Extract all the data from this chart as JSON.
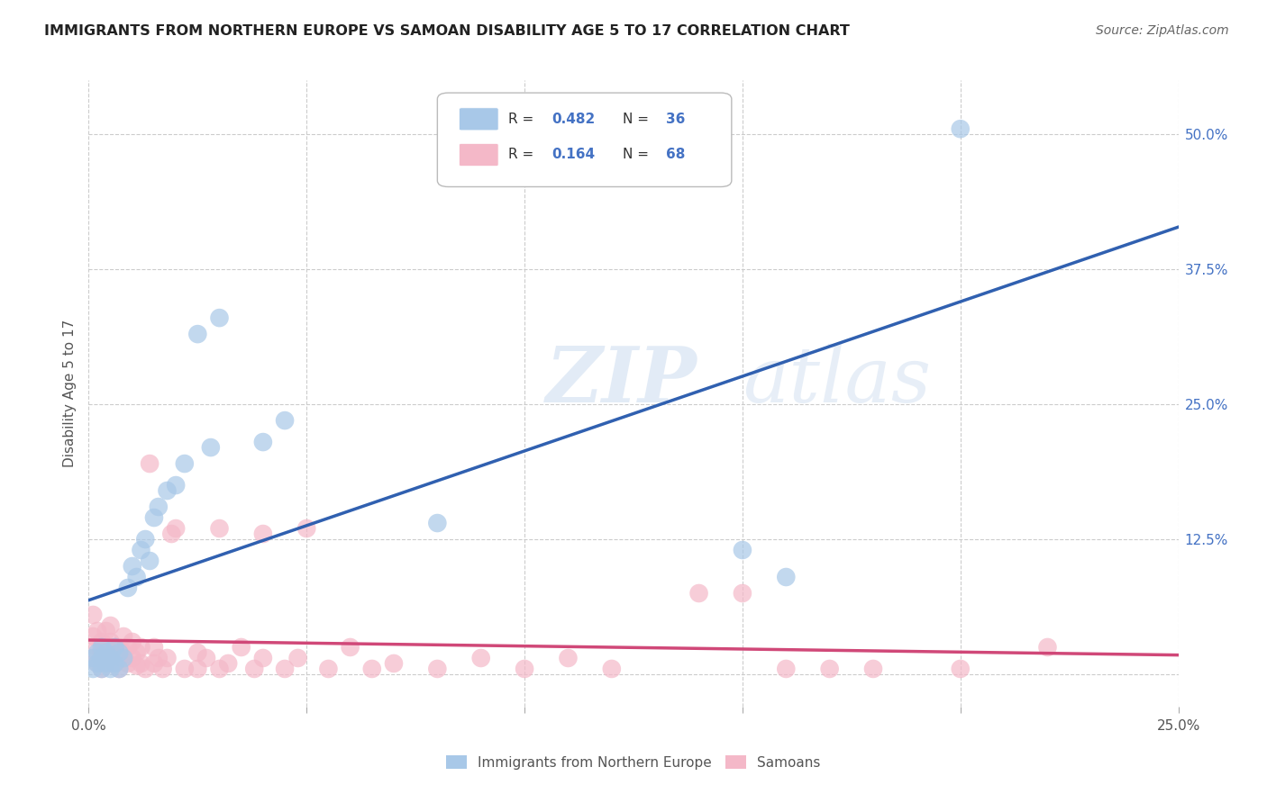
{
  "title": "IMMIGRANTS FROM NORTHERN EUROPE VS SAMOAN DISABILITY AGE 5 TO 17 CORRELATION CHART",
  "source": "Source: ZipAtlas.com",
  "ylabel_label": "Disability Age 5 to 17",
  "xlim": [
    0.0,
    0.25
  ],
  "ylim": [
    -0.03,
    0.55
  ],
  "xticks": [
    0.0,
    0.05,
    0.1,
    0.15,
    0.2,
    0.25
  ],
  "xticklabels": [
    "0.0%",
    "",
    "",
    "",
    "",
    "25.0%"
  ],
  "yticks_right": [
    0.0,
    0.125,
    0.25,
    0.375,
    0.5
  ],
  "ytick_labels_right": [
    "",
    "12.5%",
    "25.0%",
    "37.5%",
    "50.0%"
  ],
  "grid_yticks": [
    0.0,
    0.125,
    0.25,
    0.375,
    0.5
  ],
  "color_blue": "#a8c8e8",
  "color_pink": "#f4b8c8",
  "line_color_blue": "#3060b0",
  "line_color_pink": "#d04878",
  "watermark": "ZIPatlas",
  "blue_points": [
    [
      0.001,
      0.005
    ],
    [
      0.001,
      0.015
    ],
    [
      0.002,
      0.01
    ],
    [
      0.002,
      0.02
    ],
    [
      0.003,
      0.005
    ],
    [
      0.003,
      0.015
    ],
    [
      0.003,
      0.025
    ],
    [
      0.004,
      0.01
    ],
    [
      0.004,
      0.02
    ],
    [
      0.005,
      0.005
    ],
    [
      0.005,
      0.015
    ],
    [
      0.006,
      0.01
    ],
    [
      0.006,
      0.025
    ],
    [
      0.007,
      0.02
    ],
    [
      0.007,
      0.005
    ],
    [
      0.008,
      0.015
    ],
    [
      0.009,
      0.08
    ],
    [
      0.01,
      0.1
    ],
    [
      0.011,
      0.09
    ],
    [
      0.012,
      0.115
    ],
    [
      0.013,
      0.125
    ],
    [
      0.014,
      0.105
    ],
    [
      0.015,
      0.145
    ],
    [
      0.016,
      0.155
    ],
    [
      0.018,
      0.17
    ],
    [
      0.02,
      0.175
    ],
    [
      0.022,
      0.195
    ],
    [
      0.025,
      0.315
    ],
    [
      0.028,
      0.21
    ],
    [
      0.03,
      0.33
    ],
    [
      0.04,
      0.215
    ],
    [
      0.045,
      0.235
    ],
    [
      0.08,
      0.14
    ],
    [
      0.15,
      0.115
    ],
    [
      0.16,
      0.09
    ],
    [
      0.2,
      0.505
    ]
  ],
  "pink_points": [
    [
      0.001,
      0.015
    ],
    [
      0.001,
      0.035
    ],
    [
      0.001,
      0.055
    ],
    [
      0.002,
      0.01
    ],
    [
      0.002,
      0.025
    ],
    [
      0.002,
      0.04
    ],
    [
      0.003,
      0.005
    ],
    [
      0.003,
      0.02
    ],
    [
      0.003,
      0.03
    ],
    [
      0.004,
      0.01
    ],
    [
      0.004,
      0.025
    ],
    [
      0.004,
      0.04
    ],
    [
      0.005,
      0.015
    ],
    [
      0.005,
      0.03
    ],
    [
      0.005,
      0.045
    ],
    [
      0.006,
      0.01
    ],
    [
      0.006,
      0.025
    ],
    [
      0.007,
      0.015
    ],
    [
      0.007,
      0.005
    ],
    [
      0.008,
      0.02
    ],
    [
      0.008,
      0.035
    ],
    [
      0.009,
      0.01
    ],
    [
      0.009,
      0.025
    ],
    [
      0.01,
      0.015
    ],
    [
      0.01,
      0.03
    ],
    [
      0.011,
      0.008
    ],
    [
      0.011,
      0.02
    ],
    [
      0.012,
      0.01
    ],
    [
      0.012,
      0.025
    ],
    [
      0.013,
      0.005
    ],
    [
      0.014,
      0.195
    ],
    [
      0.015,
      0.01
    ],
    [
      0.015,
      0.025
    ],
    [
      0.016,
      0.015
    ],
    [
      0.017,
      0.005
    ],
    [
      0.018,
      0.015
    ],
    [
      0.019,
      0.13
    ],
    [
      0.02,
      0.135
    ],
    [
      0.022,
      0.005
    ],
    [
      0.025,
      0.005
    ],
    [
      0.025,
      0.02
    ],
    [
      0.027,
      0.015
    ],
    [
      0.03,
      0.005
    ],
    [
      0.03,
      0.135
    ],
    [
      0.032,
      0.01
    ],
    [
      0.035,
      0.025
    ],
    [
      0.038,
      0.005
    ],
    [
      0.04,
      0.13
    ],
    [
      0.04,
      0.015
    ],
    [
      0.045,
      0.005
    ],
    [
      0.048,
      0.015
    ],
    [
      0.05,
      0.135
    ],
    [
      0.055,
      0.005
    ],
    [
      0.06,
      0.025
    ],
    [
      0.065,
      0.005
    ],
    [
      0.07,
      0.01
    ],
    [
      0.08,
      0.005
    ],
    [
      0.09,
      0.015
    ],
    [
      0.1,
      0.005
    ],
    [
      0.11,
      0.015
    ],
    [
      0.12,
      0.005
    ],
    [
      0.14,
      0.075
    ],
    [
      0.15,
      0.075
    ],
    [
      0.16,
      0.005
    ],
    [
      0.17,
      0.005
    ],
    [
      0.18,
      0.005
    ],
    [
      0.2,
      0.005
    ],
    [
      0.22,
      0.025
    ]
  ]
}
